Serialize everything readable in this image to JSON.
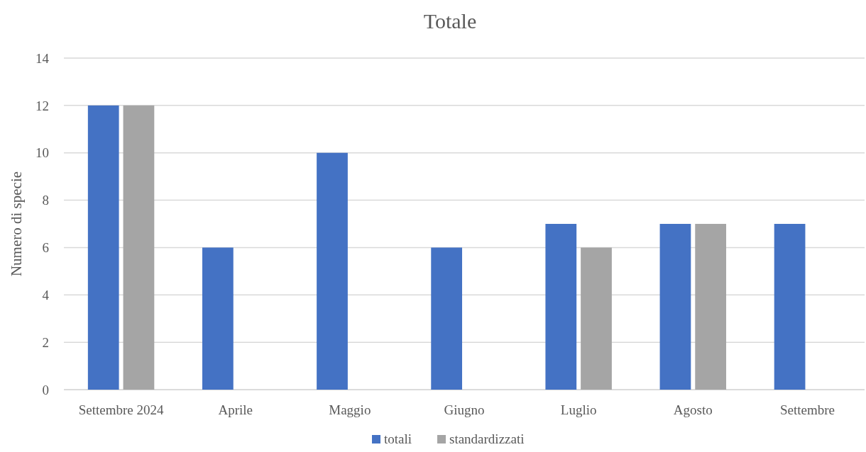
{
  "chart_data": {
    "type": "bar",
    "title": "Totale",
    "ylabel": "Numero di specie",
    "categories": [
      "Settembre 2024",
      "Aprile",
      "Maggio",
      "Giugno",
      "Luglio",
      "Agosto",
      "Settembre"
    ],
    "series": [
      {
        "name": "totali",
        "color": "#4472c4",
        "values": [
          12,
          6,
          10,
          6,
          7,
          7,
          7
        ]
      },
      {
        "name": "standardizzati",
        "color": "#a5a5a5",
        "values": [
          12,
          null,
          null,
          null,
          6,
          7,
          null
        ]
      }
    ],
    "ylim": [
      0,
      14
    ],
    "yticks": [
      0,
      2,
      4,
      6,
      8,
      10,
      12,
      14
    ],
    "grid": "y",
    "legend": "bottom"
  }
}
